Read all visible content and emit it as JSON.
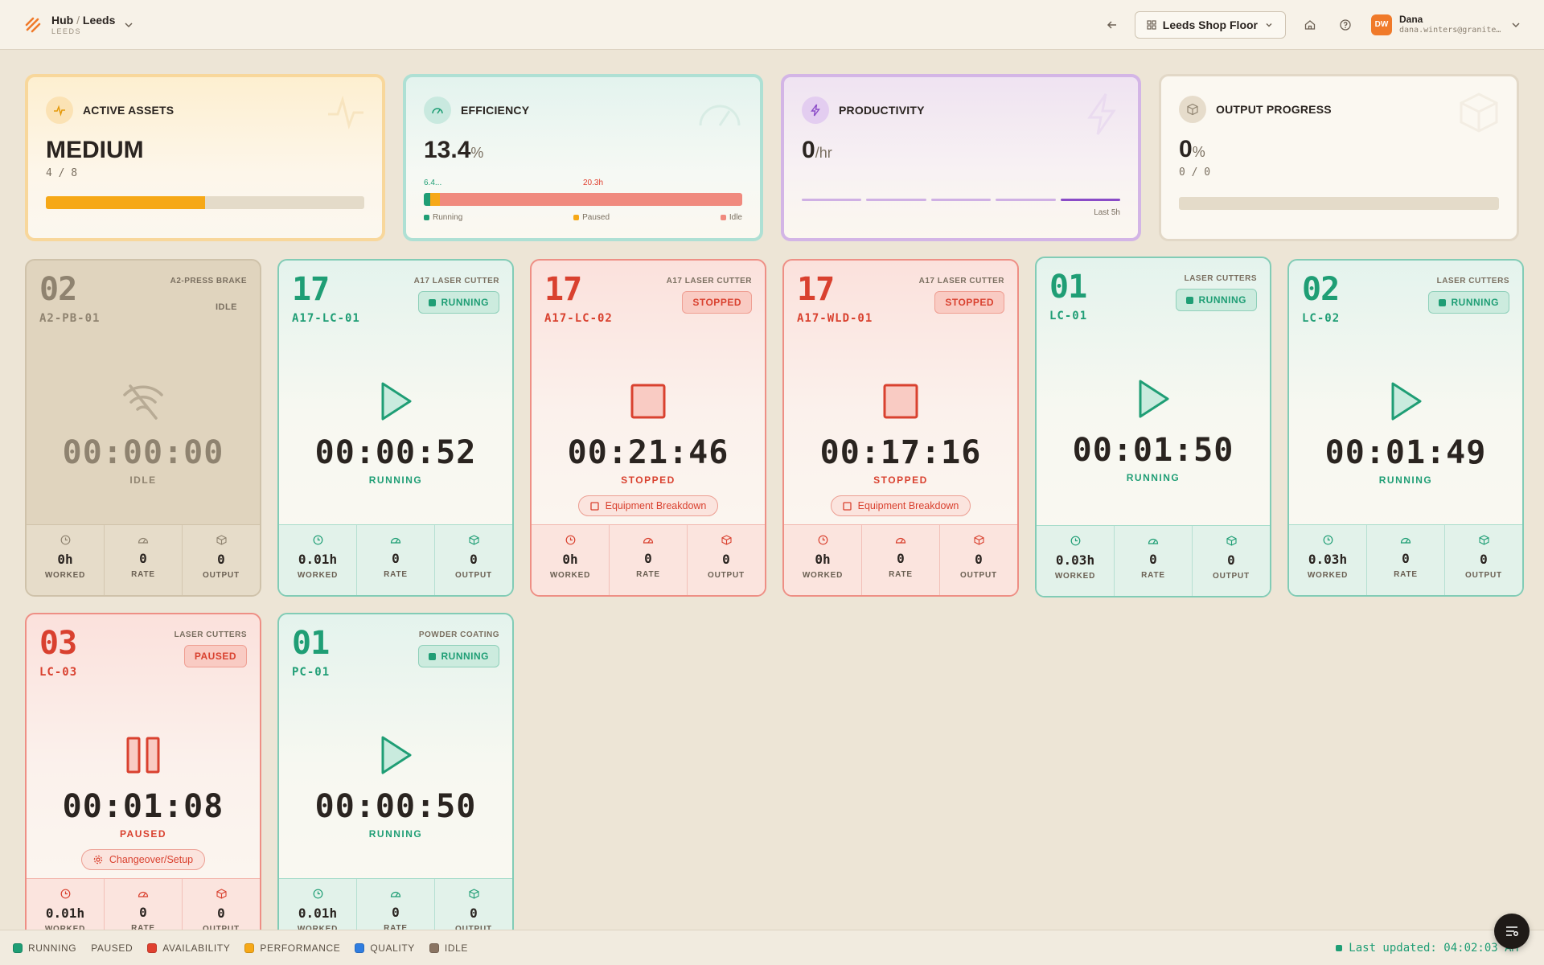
{
  "header": {
    "hub": "Hub",
    "site": "Leeds",
    "site_sub": "LEEDS",
    "floor": "Leeds Shop Floor",
    "user_initials": "DW",
    "user_name": "Dana",
    "user_email": "dana.winters@granitep..."
  },
  "summary": {
    "active": {
      "title": "ACTIVE ASSETS",
      "value": "MEDIUM",
      "sub": "4 / 8",
      "fraction": 0.5,
      "color": "#f6a817"
    },
    "efficiency": {
      "title": "EFFICIENCY",
      "value": "13.4",
      "unit": "%",
      "label_a": "6.4...",
      "label_b": "20.3h",
      "running_pct": 2,
      "paused_pct": 3,
      "idle_pct": 95,
      "legend_running": "Running",
      "legend_paused": "Paused",
      "legend_idle": "Idle"
    },
    "productivity": {
      "title": "PRODUCTIVITY",
      "value": "0",
      "unit": "/hr",
      "caption": "Last 5h"
    },
    "output": {
      "title": "OUTPUT PROGRESS",
      "value": "0",
      "unit": "%",
      "sub": "0 / 0",
      "fraction": 0
    }
  },
  "machines": [
    {
      "num": "02",
      "code": "A2-PB-01",
      "group": "A2-PRESS BRAKE",
      "badge": "IDLE",
      "state": "idle",
      "timer": "00:00:00",
      "status": "IDLE",
      "reason": "",
      "worked": "0h",
      "rate": "0",
      "output": "0"
    },
    {
      "num": "17",
      "code": "A17-LC-01",
      "group": "A17 LASER CUTTER",
      "badge": "RUNNING",
      "state": "running",
      "timer": "00:00:52",
      "status": "RUNNING",
      "reason": "",
      "worked": "0.01h",
      "rate": "0",
      "output": "0"
    },
    {
      "num": "17",
      "code": "A17-LC-02",
      "group": "A17 LASER CUTTER",
      "badge": "STOPPED",
      "state": "stopped",
      "timer": "00:21:46",
      "status": "STOPPED",
      "reason": "Equipment Breakdown",
      "worked": "0h",
      "rate": "0",
      "output": "0"
    },
    {
      "num": "17",
      "code": "A17-WLD-01",
      "group": "A17 LASER CUTTER",
      "badge": "STOPPED",
      "state": "stopped",
      "timer": "00:17:16",
      "status": "STOPPED",
      "reason": "Equipment Breakdown",
      "worked": "0h",
      "rate": "0",
      "output": "0"
    },
    {
      "num": "01",
      "code": "LC-01",
      "group": "LASER CUTTERS",
      "badge": "RUNNING",
      "state": "running",
      "timer": "00:01:50",
      "status": "RUNNING",
      "reason": "",
      "worked": "0.03h",
      "rate": "0",
      "output": "0"
    },
    {
      "num": "02",
      "code": "LC-02",
      "group": "LASER CUTTERS",
      "badge": "RUNNING",
      "state": "running",
      "timer": "00:01:49",
      "status": "RUNNING",
      "reason": "",
      "worked": "0.03h",
      "rate": "0",
      "output": "0"
    },
    {
      "num": "03",
      "code": "LC-03",
      "group": "LASER CUTTERS",
      "badge": "PAUSED",
      "state": "paused",
      "timer": "00:01:08",
      "status": "PAUSED",
      "reason": "Changeover/Setup",
      "worked": "0.01h",
      "rate": "0",
      "output": "0"
    },
    {
      "num": "01",
      "code": "PC-01",
      "group": "POWDER COATING",
      "badge": "RUNNING",
      "state": "running",
      "timer": "00:00:50",
      "status": "RUNNING",
      "reason": "",
      "worked": "0.01h",
      "rate": "0",
      "output": "0"
    }
  ],
  "stat_labels": {
    "worked": "WORKED",
    "rate": "RATE",
    "output": "OUTPUT"
  },
  "footer": {
    "legend": [
      {
        "label": "RUNNING",
        "color": "#1f9e75"
      },
      {
        "label": "PAUSED",
        "color": ""
      },
      {
        "label": "AVAILABILITY",
        "color": "#e0402f"
      },
      {
        "label": "PERFORMANCE",
        "color": "#f6a817"
      },
      {
        "label": "QUALITY",
        "color": "#2f7de0"
      },
      {
        "label": "IDLE",
        "color": "#8a7462"
      }
    ],
    "updated": "Last updated: 04:02:03 AM"
  }
}
